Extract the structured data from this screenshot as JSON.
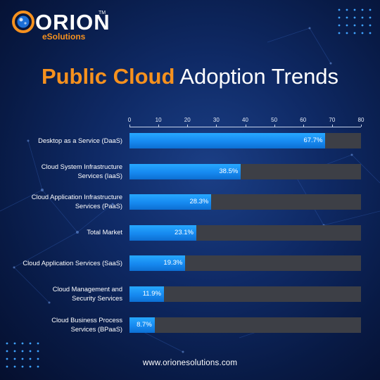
{
  "brand": {
    "name": "ORION",
    "sub": "eSolutions",
    "tm": "TM",
    "colors": {
      "orange": "#f6911e",
      "bar_blue": "#1689f0",
      "track_gray": "#3d3f46",
      "background": "#0f2a66"
    }
  },
  "title": {
    "highlight": "Public Cloud",
    "rest": "Adoption Trends"
  },
  "footer": {
    "url": "www.orionesolutions.com"
  },
  "chart_data": {
    "type": "bar",
    "orientation": "horizontal",
    "title": "Public Cloud Adoption Trends",
    "xlabel": "",
    "ylabel": "",
    "xlim": [
      0,
      80
    ],
    "ticks": [
      0,
      10,
      20,
      30,
      40,
      50,
      60,
      70,
      80
    ],
    "grid": false,
    "legend": "none",
    "categories": [
      [
        "Desktop as a Service (DaaS)"
      ],
      [
        "Cloud System Infrastructure",
        "Services (IaaS)"
      ],
      [
        "Cloud Application Infrastructure",
        "Services (PaaS)"
      ],
      [
        "Total Market"
      ],
      [
        "Cloud Application Services (SaaS)"
      ],
      [
        "Cloud Management and",
        "Security Services"
      ],
      [
        "Cloud Business Process",
        "Services (BPaaS)"
      ]
    ],
    "values": [
      67.7,
      38.5,
      28.3,
      23.1,
      19.3,
      11.9,
      8.7
    ],
    "value_labels": [
      "67.7%",
      "38.5%",
      "28.3%",
      "23.1%",
      "19.3%",
      "11.9%",
      "8.7%"
    ]
  }
}
